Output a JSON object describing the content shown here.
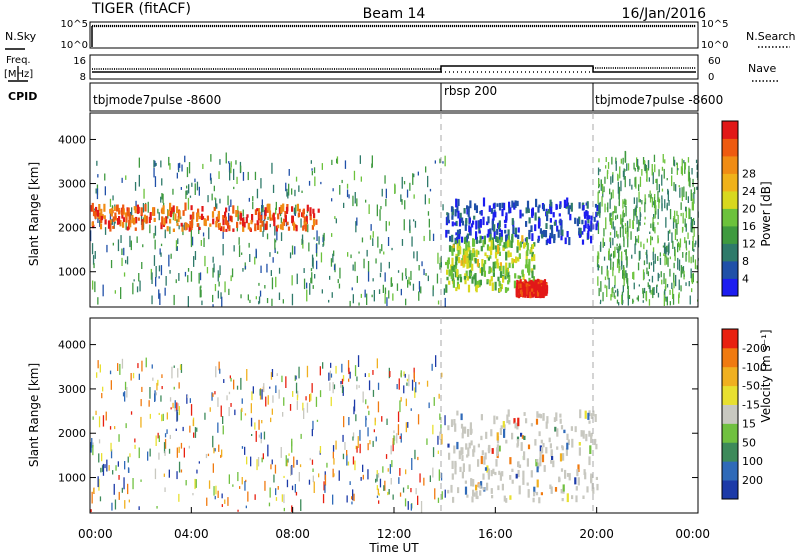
{
  "header": {
    "radar": "TIGER (fitACF)",
    "beam": "Beam 14",
    "date": "16/Jan/2016"
  },
  "noise_panel": {
    "left_label": "N.Sky",
    "right_label": "N.Search",
    "ticks": [
      "10^5",
      "10^0"
    ]
  },
  "freq_panel": {
    "left_label_1": "Freq.",
    "left_label_2": "[MHz]",
    "left_ticks": [
      "16",
      "8"
    ],
    "right_label": "Nave",
    "right_ticks": [
      "60",
      "0"
    ]
  },
  "cpid_panel": {
    "label": "CPID",
    "segments": [
      {
        "name": "tbjmode7pulse -8600",
        "start_hour": 0,
        "end_hour": 14
      },
      {
        "name": "rbsp 200",
        "start_hour": 14,
        "end_hour": 20
      },
      {
        "name": "tbjmode7pulse -8600",
        "start_hour": 20,
        "end_hour": 24
      }
    ]
  },
  "power_colorbar": {
    "label": "Power [dB]",
    "ticks": [
      "4",
      "8",
      "12",
      "16",
      "20",
      "24",
      "28"
    ],
    "colors": [
      "#1c1cf0",
      "#2050a8",
      "#2f7a6a",
      "#3f9a3f",
      "#6cc23c",
      "#d8d81e",
      "#f0b21a",
      "#f08c14",
      "#ee5a10",
      "#e21818"
    ]
  },
  "velocity_colorbar": {
    "label": "Velocity [m s⁻¹]",
    "ticks": [
      "200",
      "100",
      "50",
      "15",
      "-15",
      "-50",
      "-100",
      "-200"
    ],
    "colors": [
      "#1c3aa8",
      "#2f6ab8",
      "#3d8a5a",
      "#70c040",
      "#c8c8c0",
      "#e8e030",
      "#f0b020",
      "#f07a10",
      "#e82010"
    ]
  },
  "chart_data": [
    {
      "type": "heatmap",
      "name": "power",
      "ylabel": "Slant Range [km]",
      "x_range_hours": [
        0,
        24
      ],
      "y_range_km": [
        200,
        4600
      ],
      "y_ticks": [
        "1000",
        "2000",
        "3000",
        "4000"
      ],
      "mode_boundaries_hours": [
        14,
        20
      ],
      "regions": [
        {
          "desc": "sparse scatter",
          "t": [
            0,
            14
          ],
          "r": [
            200,
            3500
          ],
          "typical_db": 10
        },
        {
          "desc": "strong band",
          "t": [
            0,
            9
          ],
          "r": [
            1900,
            2400
          ],
          "typical_db": 26
        },
        {
          "desc": "far echoes",
          "t": [
            14,
            20
          ],
          "r": [
            1600,
            2500
          ],
          "typical_db": 5
        },
        {
          "desc": "near echoes",
          "t": [
            14,
            17.5
          ],
          "r": [
            500,
            1700
          ],
          "typical_db": 15
        },
        {
          "desc": "peak",
          "t": [
            16.8,
            18
          ],
          "r": [
            400,
            650
          ],
          "typical_db": 29
        },
        {
          "desc": "sparse scatter",
          "t": [
            20,
            24
          ],
          "r": [
            200,
            3500
          ],
          "typical_db": 12
        }
      ]
    },
    {
      "type": "heatmap",
      "name": "velocity",
      "ylabel": "Slant Range [km]",
      "xlabel": "Time UT",
      "x_range_hours": [
        0,
        24
      ],
      "x_ticks": [
        "00:00",
        "04:00",
        "08:00",
        "12:00",
        "16:00",
        "20:00",
        "00:00"
      ],
      "y_range_km": [
        200,
        4600
      ],
      "y_ticks": [
        "1000",
        "2000",
        "3000",
        "4000"
      ],
      "mode_boundaries_hours": [
        14,
        20
      ],
      "regions": [
        {
          "desc": "mixed scatter",
          "t": [
            0,
            14
          ],
          "r": [
            200,
            3500
          ],
          "typical_ms": 0
        },
        {
          "desc": "near-zero echoes",
          "t": [
            14,
            20
          ],
          "r": [
            400,
            2400
          ],
          "typical_ms": 0
        }
      ]
    }
  ]
}
